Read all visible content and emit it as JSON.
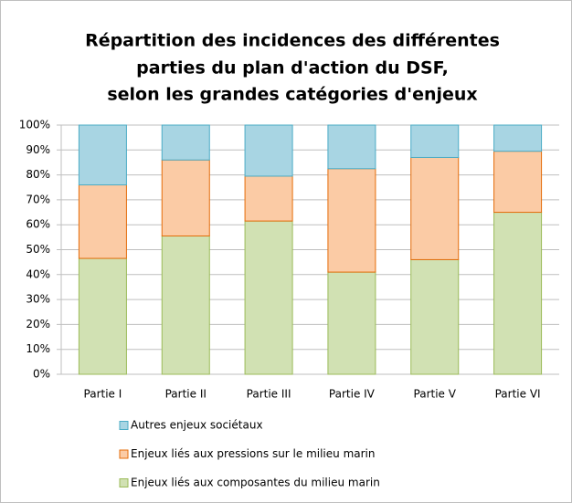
{
  "chart_data": {
    "type": "stacked_bar",
    "title": [
      "Répartition des incidences des différentes",
      "parties du plan d'action du DSF,",
      "selon les grandes catégories d'enjeux"
    ],
    "categories": [
      "Partie I",
      "Partie II",
      "Partie III",
      "Partie IV",
      "Partie V",
      "Partie VI"
    ],
    "series": [
      {
        "name": "Enjeux liés aux composantes du milieu marin",
        "color": "#d1e1b3",
        "values": [
          46.5,
          55.5,
          61.5,
          41,
          46,
          65
        ]
      },
      {
        "name": "Enjeux liés aux pressions sur le milieu marin",
        "color": "#fbcba5",
        "values": [
          29.5,
          30.5,
          18,
          41.5,
          41,
          24.5
        ]
      },
      {
        "name": "Autres enjeux sociétaux",
        "color": "#a8d5e3",
        "values": [
          24,
          14,
          20.5,
          17.5,
          13,
          10.5
        ]
      }
    ],
    "ylim": [
      0,
      100
    ],
    "yticks": [
      {
        "value": 0,
        "label": "0%"
      },
      {
        "value": 10,
        "label": "10%"
      },
      {
        "value": 20,
        "label": "20%"
      },
      {
        "value": 30,
        "label": "30%"
      },
      {
        "value": 40,
        "label": "40%"
      },
      {
        "value": 50,
        "label": "50%"
      },
      {
        "value": 60,
        "label": "60%"
      },
      {
        "value": 70,
        "label": "70%"
      },
      {
        "value": 80,
        "label": "80%"
      },
      {
        "value": 90,
        "label": "90%"
      },
      {
        "value": 100,
        "label": "100%"
      }
    ],
    "grid": true,
    "legend": "bottom"
  }
}
